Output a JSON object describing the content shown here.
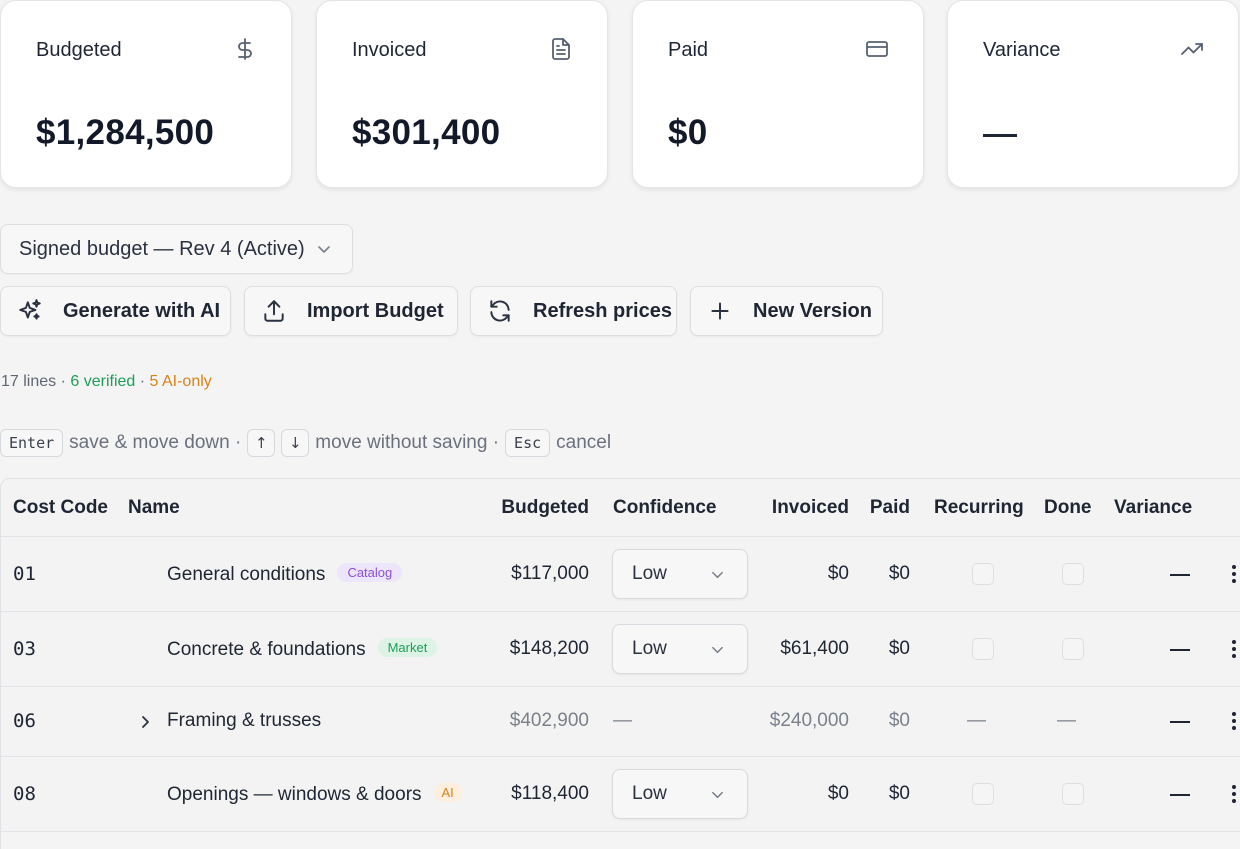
{
  "cards": [
    {
      "label": "Budgeted",
      "icon": "dollar-icon",
      "value": "$1,284,500"
    },
    {
      "label": "Invoiced",
      "icon": "document-icon",
      "value": "$301,400"
    },
    {
      "label": "Paid",
      "icon": "credit-card-icon",
      "value": "$0"
    },
    {
      "label": "Variance",
      "icon": "trending-up-icon",
      "value": "—"
    }
  ],
  "budget_selector": {
    "value": "Signed budget — Rev 4 (Active)"
  },
  "actions": [
    {
      "label": "Generate with AI",
      "icon": "sparkles-icon"
    },
    {
      "label": "Import Budget",
      "icon": "upload-icon"
    },
    {
      "label": "Refresh prices",
      "icon": "refresh-icon"
    },
    {
      "label": "New Version",
      "icon": "plus-icon"
    }
  ],
  "summary": {
    "lines": "17 lines",
    "sep": " · ",
    "verified": "6 verified",
    "ai_only": "5 AI-only"
  },
  "hints": {
    "enter_key": "Enter",
    "enter_text": "save & move down ·",
    "up_key": "↑",
    "down_key": "↓",
    "arrows_text": "move without saving ·",
    "esc_key": "Esc",
    "esc_text": "cancel"
  },
  "table": {
    "columns": {
      "cost_code": "Cost Code",
      "name": "Name",
      "budgeted": "Budgeted",
      "confidence": "Confidence",
      "invoiced": "Invoiced",
      "paid": "Paid",
      "recurring": "Recurring",
      "done": "Done",
      "variance": "Variance"
    },
    "rows": [
      {
        "code": "01",
        "name": "General conditions",
        "badge": "Catalog",
        "budgeted": "$117,000",
        "confidence": "Low",
        "invoiced": "$0",
        "paid": "$0",
        "variance": "—"
      },
      {
        "code": "03",
        "name": "Concrete & foundations",
        "badge": "Market",
        "budgeted": "$148,200",
        "confidence": "Low",
        "invoiced": "$61,400",
        "paid": "$0",
        "variance": "—"
      },
      {
        "code": "06",
        "name": "Framing & trusses",
        "budgeted": "$402,900",
        "confidence": "—",
        "invoiced": "$240,000",
        "paid": "$0",
        "recurring": "—",
        "done": "—",
        "variance": "—"
      },
      {
        "code": "08",
        "name": "Openings — windows & doors",
        "badge": "AI",
        "budgeted": "$118,400",
        "confidence": "Low",
        "invoiced": "$0",
        "paid": "$0",
        "variance": "—"
      }
    ]
  }
}
